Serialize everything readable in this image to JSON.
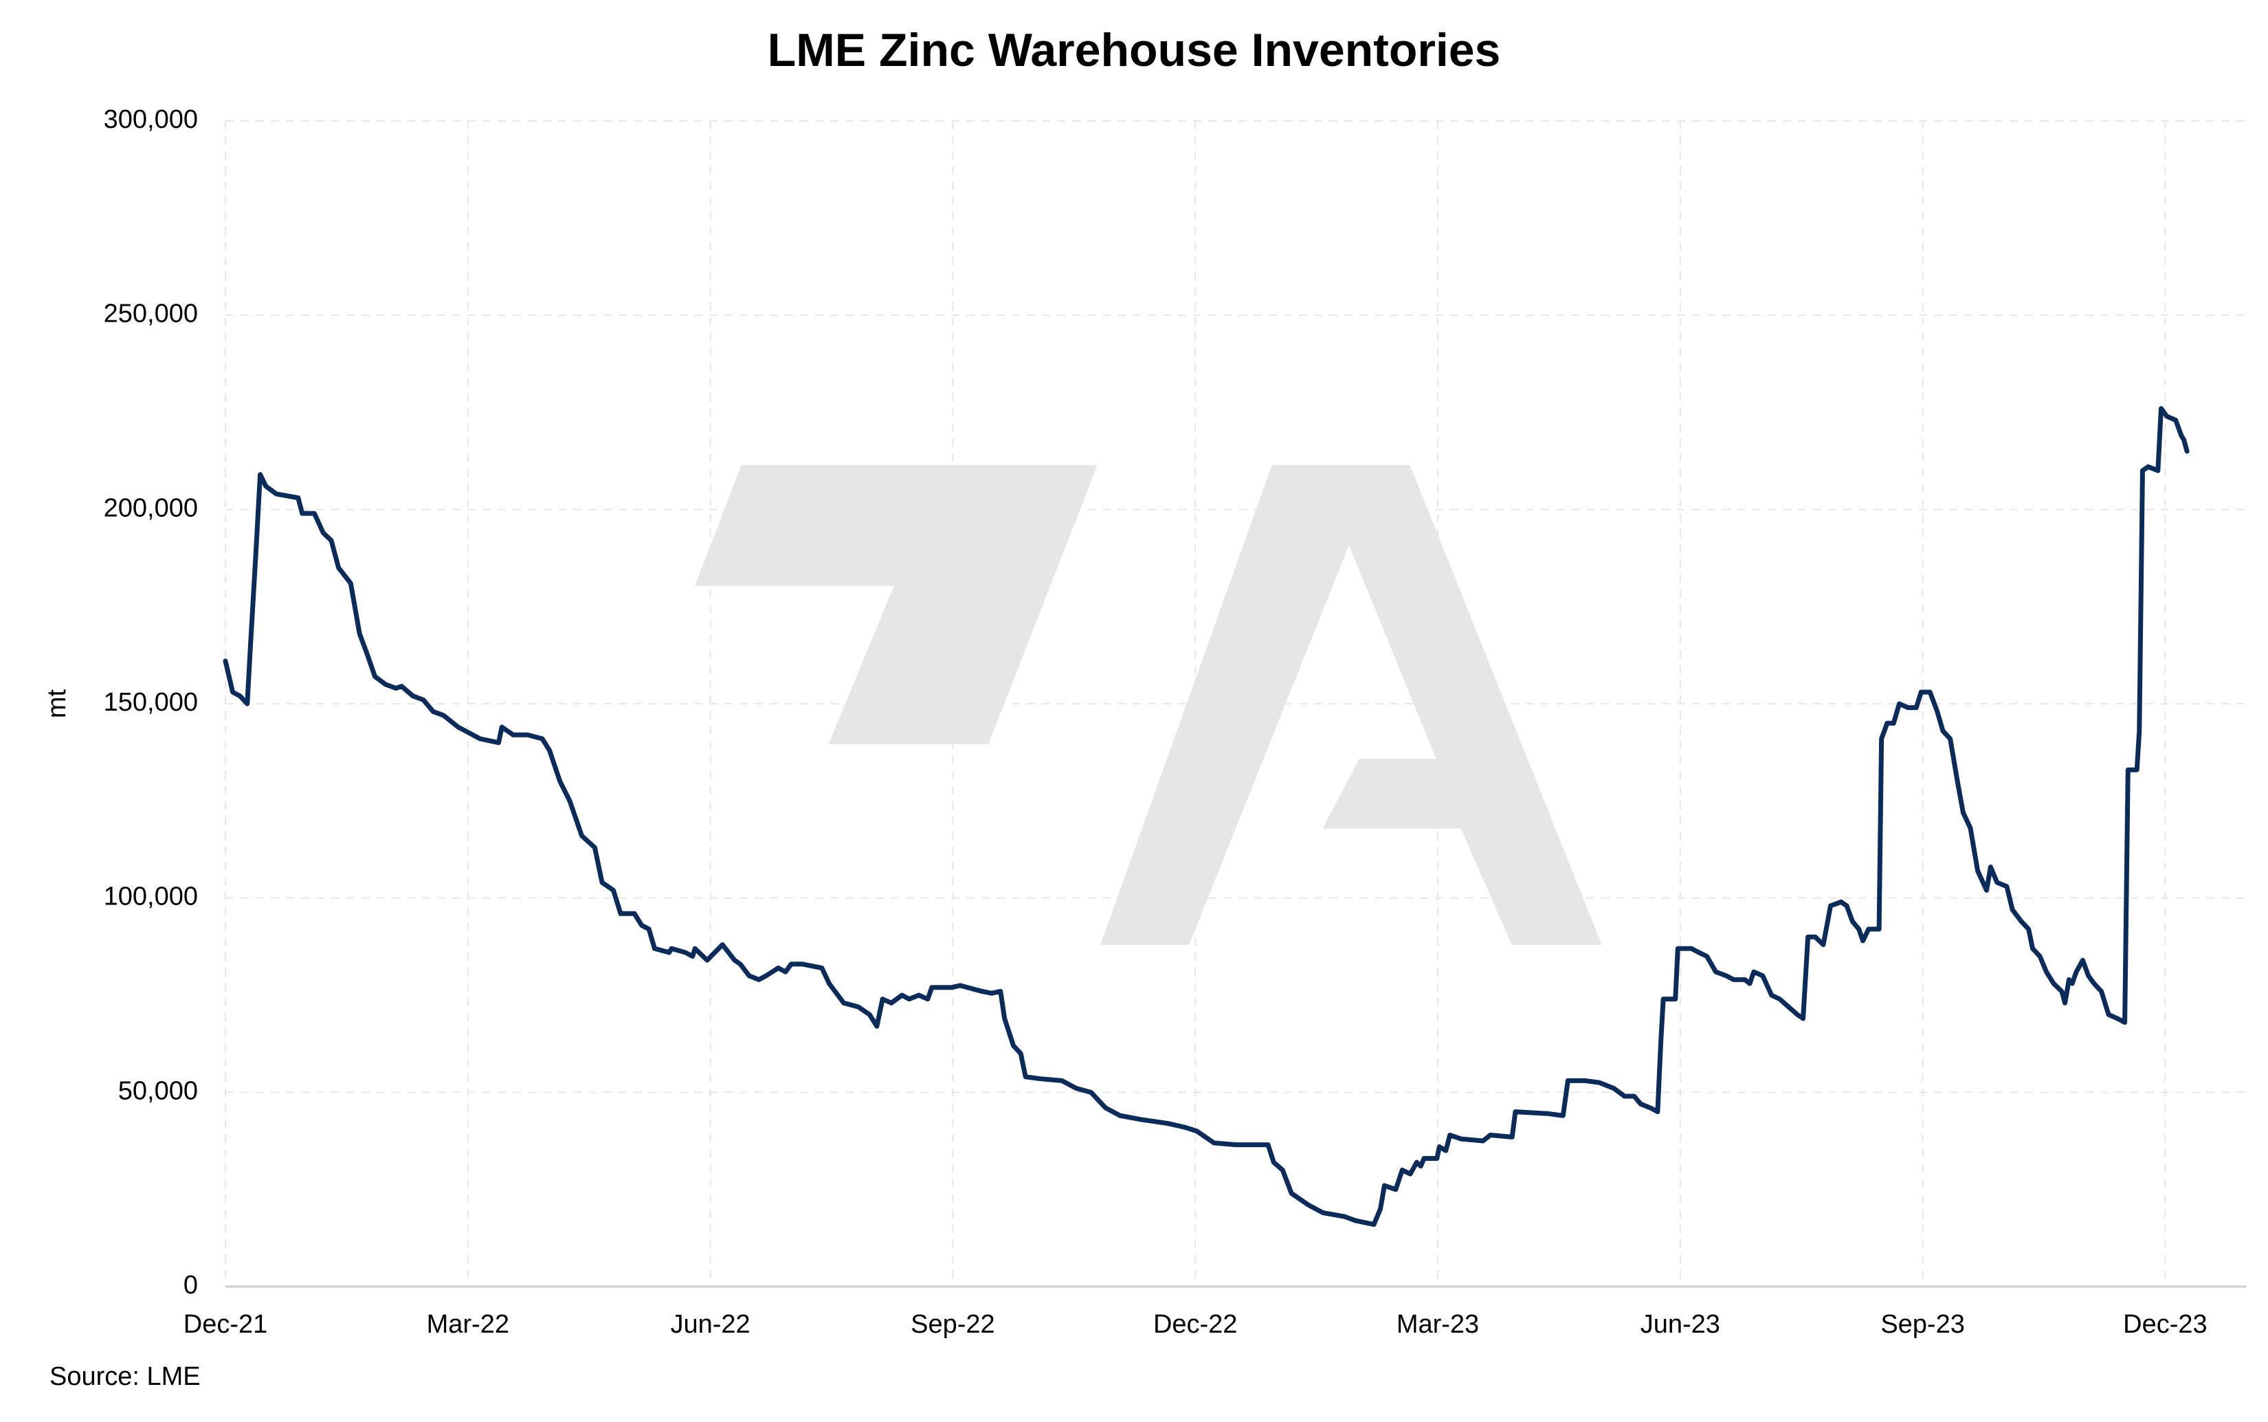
{
  "chart_data": {
    "type": "line",
    "title": "LME Zinc Warehouse Inventories",
    "y_label": "mt",
    "source": "Source: LME",
    "color": "#0b2c5a",
    "grid": true,
    "xlim": [
      0,
      25
    ],
    "xticks": [
      {
        "value": 0,
        "label": "Dec-21"
      },
      {
        "value": 3,
        "label": "Mar-22"
      },
      {
        "value": 6,
        "label": "Jun-22"
      },
      {
        "value": 9,
        "label": "Sep-22"
      },
      {
        "value": 12,
        "label": "Dec-22"
      },
      {
        "value": 15,
        "label": "Mar-23"
      },
      {
        "value": 18,
        "label": "Jun-23"
      },
      {
        "value": 21,
        "label": "Sep-23"
      },
      {
        "value": 24,
        "label": "Dec-23"
      }
    ],
    "ylim": [
      0,
      300000
    ],
    "yticks": [
      0,
      {
        "value": 50000,
        "label": "50,000"
      },
      {
        "value": 100000,
        "label": "100,000"
      },
      {
        "value": 150000,
        "label": "150,000"
      },
      {
        "value": 200000,
        "label": "200,000"
      },
      {
        "value": 250000,
        "label": "250,000"
      },
      {
        "value": 300000,
        "label": "300,000"
      }
    ],
    "x": [
      0,
      0.09,
      0.18,
      0.27,
      0.31,
      0.38,
      0.43,
      0.5,
      0.63,
      0.9,
      0.95,
      1.1,
      1.21,
      1.31,
      1.4,
      1.55,
      1.66,
      1.75,
      1.85,
      1.98,
      2.11,
      2.18,
      2.32,
      2.45,
      2.57,
      2.7,
      2.88,
      2.97,
      3.15,
      3.38,
      3.42,
      3.56,
      3.74,
      3.92,
      4.01,
      4.14,
      4.26,
      4.41,
      4.57,
      4.66,
      4.8,
      4.89,
      5.06,
      5.15,
      5.24,
      5.31,
      5.49,
      5.52,
      5.69,
      5.78,
      5.81,
      5.96,
      6.15,
      6.3,
      6.37,
      6.48,
      6.6,
      6.69,
      6.84,
      6.93,
      7.0,
      7.14,
      7.38,
      7.47,
      7.65,
      7.83,
      7.97,
      8.06,
      8.13,
      8.24,
      8.37,
      8.46,
      8.58,
      8.69,
      8.74,
      8.99,
      9.09,
      9.36,
      9.48,
      9.59,
      9.64,
      9.75,
      9.84,
      9.9,
      10.08,
      10.35,
      10.53,
      10.71,
      10.89,
      11.07,
      11.33,
      11.66,
      11.87,
      12.02,
      12.23,
      12.5,
      12.9,
      12.97,
      13.08,
      13.19,
      13.4,
      13.58,
      13.85,
      13.98,
      14.21,
      14.29,
      14.34,
      14.48,
      14.56,
      14.66,
      14.74,
      14.79,
      14.83,
      14.99,
      15.02,
      15.1,
      15.15,
      15.29,
      15.56,
      15.65,
      15.92,
      15.96,
      16.37,
      16.55,
      16.61,
      16.82,
      17.0,
      17.18,
      17.31,
      17.43,
      17.51,
      17.63,
      17.72,
      17.76,
      17.79,
      17.94,
      17.97,
      18.14,
      18.23,
      18.33,
      18.44,
      18.57,
      18.66,
      18.8,
      18.86,
      18.91,
      19.02,
      19.13,
      19.23,
      19.34,
      19.45,
      19.52,
      19.58,
      19.67,
      19.77,
      19.86,
      19.99,
      20.06,
      20.13,
      20.21,
      20.26,
      20.33,
      20.46,
      20.49,
      20.56,
      20.64,
      20.71,
      20.82,
      20.92,
      20.98,
      21.09,
      21.18,
      21.25,
      21.34,
      21.43,
      21.5,
      21.59,
      21.68,
      21.79,
      21.84,
      21.92,
      22.04,
      22.11,
      22.22,
      22.31,
      22.36,
      22.45,
      22.53,
      22.62,
      22.72,
      22.76,
      22.81,
      22.85,
      22.9,
      22.98,
      23.05,
      23.12,
      23.21,
      23.3,
      23.41,
      23.5,
      23.54,
      23.65,
      23.68,
      23.72,
      23.79,
      23.91,
      23.95,
      24.02,
      24.13,
      24.2,
      24.23,
      24.27
    ],
    "values": [
      161000,
      153000,
      152000,
      150000,
      165000,
      190000,
      209000,
      206000,
      204000,
      203000,
      199000,
      199000,
      194000,
      192000,
      185000,
      181000,
      168000,
      163000,
      157000,
      155000,
      154000,
      154500,
      152000,
      151000,
      148000,
      147000,
      144000,
      143000,
      141000,
      140000,
      144000,
      142000,
      142000,
      141000,
      138000,
      130000,
      125000,
      116000,
      113000,
      104000,
      102000,
      96000,
      96000,
      93000,
      92000,
      87000,
      86000,
      87000,
      86000,
      85000,
      87000,
      84000,
      88000,
      84000,
      83000,
      80000,
      79000,
      80000,
      82000,
      81000,
      83000,
      83000,
      82000,
      78000,
      73000,
      72000,
      70000,
      67000,
      74000,
      73000,
      75000,
      74000,
      75000,
      74000,
      77000,
      77000,
      77500,
      76000,
      75500,
      76000,
      69000,
      62000,
      60000,
      54000,
      53500,
      53000,
      51000,
      50000,
      46000,
      44000,
      43000,
      42000,
      41000,
      40000,
      37000,
      36500,
      36500,
      32000,
      30000,
      24000,
      21000,
      19000,
      18000,
      17000,
      16000,
      20000,
      26000,
      25000,
      30000,
      29000,
      32000,
      31000,
      33000,
      33000,
      36000,
      35000,
      39000,
      38000,
      37500,
      39000,
      38500,
      45000,
      44500,
      44000,
      53000,
      53000,
      52500,
      51000,
      49000,
      49000,
      47000,
      46000,
      45000,
      63000,
      74000,
      74000,
      87000,
      87000,
      86000,
      85000,
      81000,
      80000,
      79000,
      79000,
      78000,
      81000,
      80000,
      75000,
      74000,
      72000,
      70000,
      69000,
      90000,
      90000,
      88000,
      98000,
      99000,
      98000,
      94000,
      92000,
      89000,
      92000,
      92000,
      141000,
      145000,
      145000,
      150000,
      149000,
      149000,
      153000,
      153000,
      148000,
      143000,
      141000,
      130000,
      122000,
      118000,
      107000,
      102000,
      108000,
      104000,
      103000,
      97000,
      94000,
      92000,
      87000,
      85000,
      81000,
      78000,
      76000,
      73000,
      79000,
      78000,
      81000,
      84000,
      80000,
      78000,
      76000,
      70000,
      69000,
      68000,
      133000,
      133000,
      143000,
      210000,
      211000,
      210000,
      226000,
      224000,
      223000,
      219000,
      218000,
      215000
    ]
  }
}
